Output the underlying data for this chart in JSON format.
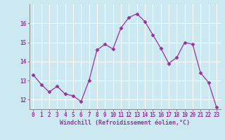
{
  "x": [
    0,
    1,
    2,
    3,
    4,
    5,
    6,
    7,
    8,
    9,
    10,
    11,
    12,
    13,
    14,
    15,
    16,
    17,
    18,
    19,
    20,
    21,
    22,
    23
  ],
  "y": [
    13.3,
    12.8,
    12.4,
    12.7,
    12.3,
    12.2,
    11.9,
    13.0,
    14.6,
    14.9,
    14.65,
    15.75,
    16.3,
    16.5,
    16.1,
    15.4,
    14.7,
    13.9,
    14.2,
    15.0,
    14.9,
    13.4,
    12.9,
    11.6
  ],
  "line_color": "#993399",
  "marker": "D",
  "marker_size": 2.5,
  "bg_color": "#cce8f0",
  "grid_color": "#ffffff",
  "xlabel": "Windchill (Refroidissement éolien,°C)",
  "ylim": [
    11.5,
    17.0
  ],
  "yticks": [
    12,
    13,
    14,
    15,
    16
  ],
  "xticks": [
    0,
    1,
    2,
    3,
    4,
    5,
    6,
    7,
    8,
    9,
    10,
    11,
    12,
    13,
    14,
    15,
    16,
    17,
    18,
    19,
    20,
    21,
    22,
    23
  ],
  "tick_color": "#993399",
  "label_color": "#993399",
  "axis_color": "#888888",
  "font": "monospace",
  "tick_fontsize": 5.5,
  "xlabel_fontsize": 6.0
}
